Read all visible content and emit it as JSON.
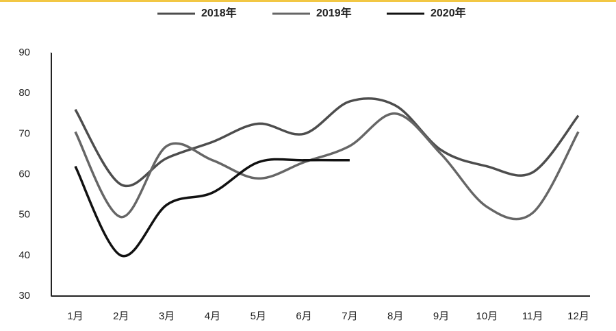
{
  "chart_data": {
    "type": "line",
    "categories": [
      "1月",
      "2月",
      "3月",
      "4月",
      "5月",
      "6月",
      "7月",
      "8月",
      "9月",
      "10月",
      "11月",
      "12月"
    ],
    "series": [
      {
        "name": "2018年",
        "color": "#4d4d4d",
        "values": [
          76,
          57.5,
          64,
          68,
          72.5,
          70,
          78,
          77,
          66,
          62,
          60.5,
          74.5
        ]
      },
      {
        "name": "2019年",
        "color": "#666666",
        "values": [
          70.5,
          49.5,
          67,
          63.5,
          59,
          63,
          67,
          75,
          65,
          52,
          50.5,
          70.5
        ]
      },
      {
        "name": "2020年",
        "color": "#111111",
        "values": [
          62,
          40,
          52.5,
          55.5,
          63,
          63.5,
          63.5,
          null,
          null,
          null,
          null,
          null
        ]
      }
    ],
    "ylim": [
      30,
      90
    ],
    "yticks": [
      30,
      40,
      50,
      60,
      70,
      80,
      90
    ],
    "legend": "top"
  }
}
